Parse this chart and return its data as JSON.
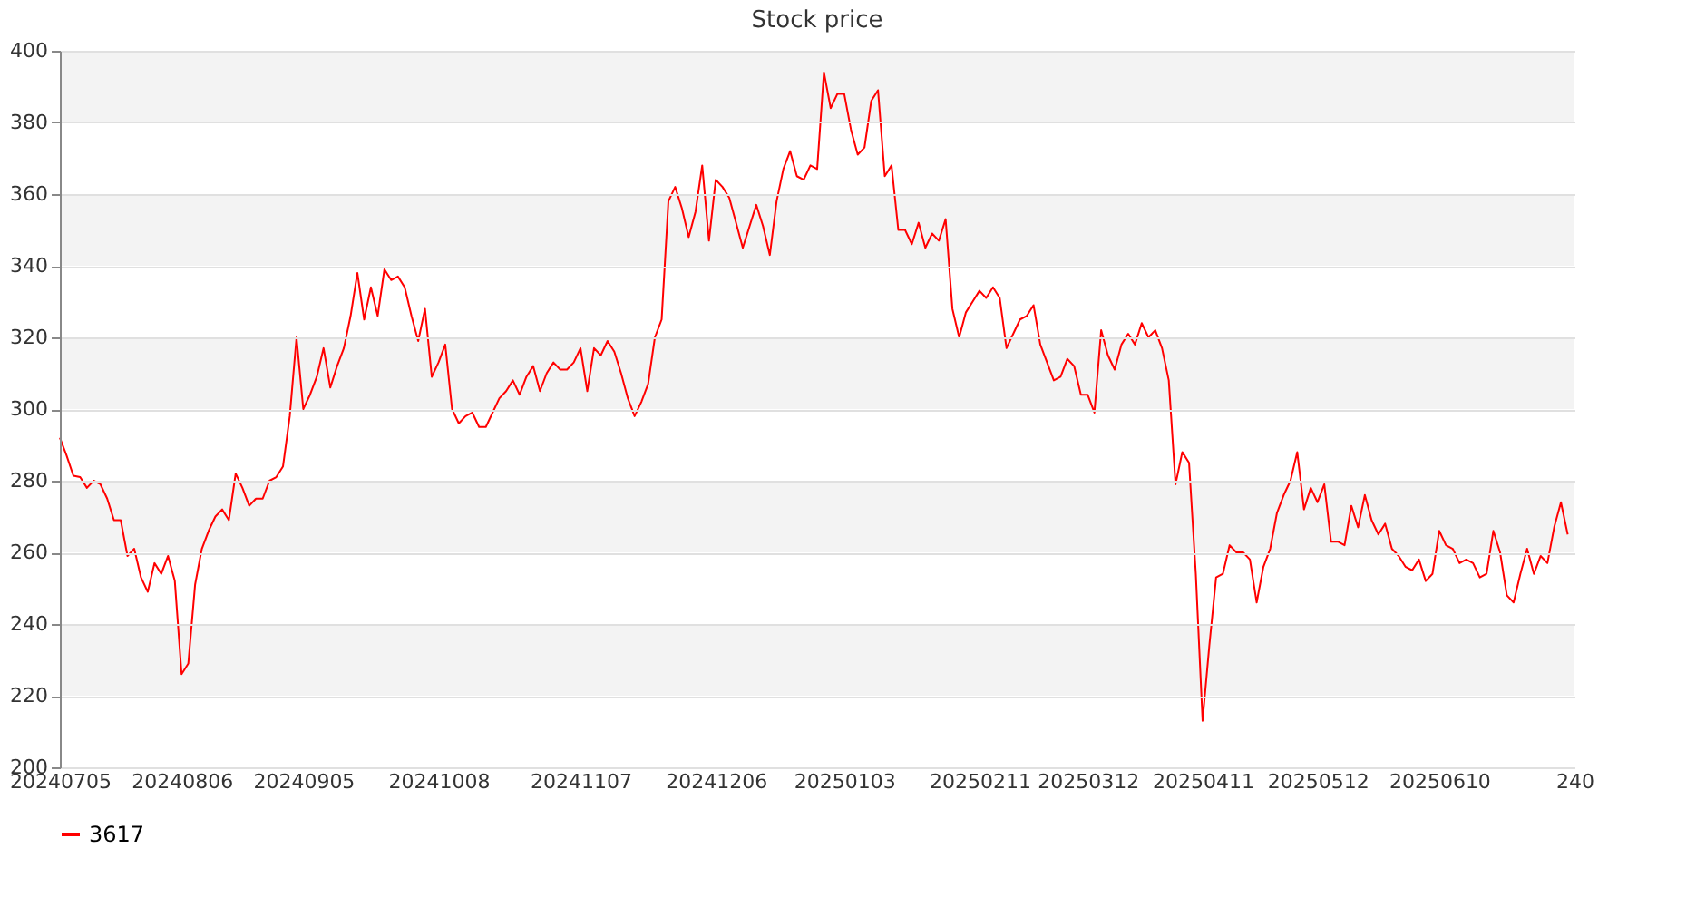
{
  "chart_data": {
    "type": "line",
    "title": "Stock price",
    "categories": [
      "20240705",
      null,
      null,
      null,
      null,
      null,
      null,
      null,
      null,
      null,
      null,
      null,
      null,
      null,
      null,
      null,
      null,
      null,
      "20240806",
      null,
      null,
      null,
      null,
      null,
      null,
      null,
      null,
      null,
      null,
      null,
      null,
      null,
      null,
      null,
      null,
      null,
      "20240905",
      null,
      null,
      null,
      null,
      null,
      null,
      null,
      null,
      null,
      null,
      null,
      null,
      null,
      null,
      null,
      null,
      null,
      null,
      null,
      "20241008",
      null,
      null,
      null,
      null,
      null,
      null,
      null,
      null,
      null,
      null,
      null,
      null,
      null,
      null,
      null,
      null,
      null,
      null,
      null,
      null,
      "20241107",
      null,
      null,
      null,
      null,
      null,
      null,
      null,
      null,
      null,
      null,
      null,
      null,
      null,
      null,
      null,
      null,
      null,
      null,
      null,
      "20241206",
      null,
      null,
      null,
      null,
      null,
      null,
      null,
      null,
      null,
      null,
      null,
      null,
      null,
      null,
      null,
      null,
      null,
      null,
      "20250103",
      null,
      null,
      null,
      null,
      null,
      null,
      null,
      null,
      null,
      null,
      null,
      null,
      null,
      null,
      null,
      null,
      null,
      null,
      null,
      "20250211",
      null,
      null,
      null,
      null,
      null,
      null,
      null,
      null,
      null,
      null,
      null,
      null,
      null,
      null,
      null,
      "20250312",
      null,
      null,
      null,
      null,
      null,
      null,
      null,
      null,
      null,
      null,
      null,
      null,
      null,
      null,
      null,
      null,
      "20250411",
      null,
      null,
      null,
      null,
      null,
      null,
      null,
      null,
      null,
      null,
      null,
      null,
      null,
      null,
      null,
      null,
      "20250512",
      null,
      null,
      null,
      null,
      null,
      null,
      null,
      null,
      null,
      null,
      null,
      null,
      null,
      null,
      null,
      null,
      null,
      "20250610",
      null,
      null,
      null,
      null,
      null,
      null,
      null,
      null,
      null,
      null,
      null,
      null,
      null,
      null,
      null,
      null,
      null,
      null,
      null,
      "240"
    ],
    "series": [
      {
        "name": "3617",
        "color": "#ff0000",
        "values": [
          292,
          287,
          281.4,
          281,
          278,
          280,
          279,
          275,
          269,
          269,
          259,
          261,
          253,
          249,
          257,
          254,
          259,
          252,
          226,
          229,
          251,
          261,
          266,
          270,
          272,
          269,
          282,
          278,
          273,
          275,
          275,
          280,
          281,
          284,
          298,
          320,
          300,
          304,
          309,
          317,
          306,
          312,
          317,
          326,
          338,
          325,
          334,
          326,
          339,
          336,
          337,
          334,
          326,
          319,
          328,
          309,
          313,
          318,
          300,
          296,
          298,
          299,
          295,
          295,
          299,
          303,
          305,
          308,
          304,
          309,
          312,
          305,
          310,
          313,
          311,
          311,
          313,
          317,
          305,
          317,
          315,
          319,
          316,
          310,
          303,
          298,
          302,
          307,
          320,
          325,
          358,
          362,
          356,
          348,
          355,
          368,
          347,
          364,
          362,
          359,
          352,
          345,
          351,
          357,
          351,
          343,
          358,
          367,
          372,
          365,
          364,
          368,
          367,
          394,
          384,
          388,
          388,
          378,
          371,
          373,
          386,
          389,
          365,
          368,
          350,
          350,
          346,
          352,
          345,
          349,
          347,
          353,
          328,
          320,
          327,
          330,
          333,
          331,
          334,
          331,
          317,
          321,
          325,
          326,
          329,
          318,
          313,
          308,
          309,
          314,
          312,
          304,
          304,
          299,
          322,
          315,
          311,
          318,
          321,
          318,
          324,
          320,
          322,
          317,
          308,
          279,
          288,
          285,
          254,
          213,
          234,
          253,
          254,
          262,
          260,
          260,
          258,
          246,
          256,
          261,
          271,
          276,
          280,
          288,
          272,
          278,
          274,
          279,
          263,
          263,
          262,
          273,
          267,
          276,
          269,
          265,
          268,
          261,
          259,
          256,
          255,
          258,
          252,
          254,
          266,
          262,
          261,
          257,
          258,
          257,
          253,
          254,
          266,
          260,
          248,
          246,
          254,
          261,
          254,
          259,
          257,
          267,
          274,
          265,
          null
        ]
      }
    ],
    "ylim": [
      200,
      400
    ],
    "yticks": [
      200,
      220,
      240,
      260,
      280,
      300,
      320,
      340,
      360,
      380,
      400
    ],
    "grid": "y",
    "legend": "bottom",
    "marker": "none",
    "line_style": "solid"
  }
}
